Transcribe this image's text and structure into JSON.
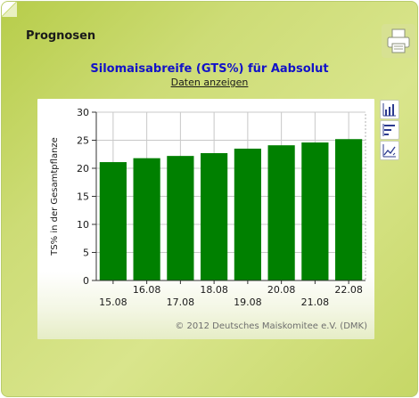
{
  "panel": {
    "title": "Prognosen"
  },
  "chart_data": {
    "type": "bar",
    "title": "Silomaisabreife (GTS%) für Aabsolut",
    "link": "Daten anzeigen",
    "ylabel": "TS% in der Gesamtpflanze",
    "xlabel": "",
    "categories": [
      "15.08",
      "16.08",
      "17.08",
      "18.08",
      "19.08",
      "20.08",
      "21.08",
      "22.08"
    ],
    "values": [
      21.1,
      21.8,
      22.2,
      22.7,
      23.5,
      24.1,
      24.6,
      25.2
    ],
    "ylim": [
      0,
      30
    ],
    "yticks": [
      0,
      5,
      10,
      15,
      20,
      25,
      30
    ],
    "grid": true,
    "bar_color": "#008000",
    "copyright": "© 2012 Deutsches Maiskomitee e.V. (DMK)"
  },
  "tools": [
    "bar-chart-icon",
    "horizontal-bar-icon",
    "line-chart-icon"
  ],
  "colors": {
    "panel": "#cddc76",
    "title": "#1212c8",
    "bars": "#008000"
  }
}
